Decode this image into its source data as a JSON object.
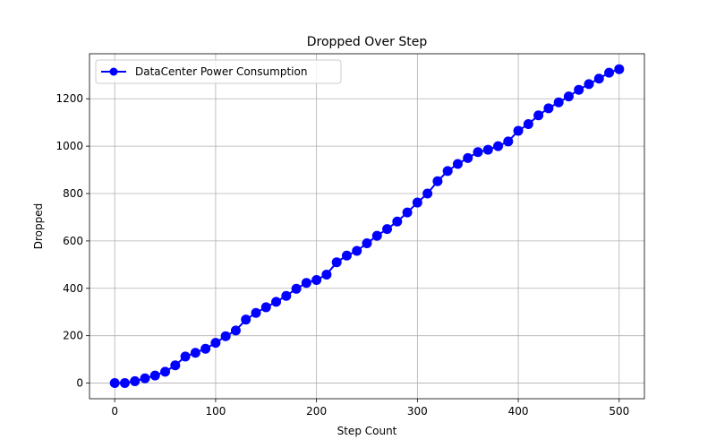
{
  "chart_data": {
    "type": "line",
    "title": "Dropped Over Step",
    "xlabel": "Step Count",
    "ylabel": "Dropped",
    "xlim": [
      -25,
      525
    ],
    "ylim": [
      -66,
      1390
    ],
    "xticks": [
      0,
      100,
      200,
      300,
      400,
      500
    ],
    "yticks": [
      0,
      200,
      400,
      600,
      800,
      1000,
      1200
    ],
    "grid": true,
    "legend_position": "top-left",
    "series": [
      {
        "name": "DataCenter Power Consumption",
        "color": "#0000ff",
        "marker": "circle",
        "x": [
          0,
          10,
          20,
          30,
          40,
          50,
          60,
          70,
          80,
          90,
          100,
          110,
          120,
          130,
          140,
          150,
          160,
          170,
          180,
          190,
          200,
          210,
          220,
          230,
          240,
          250,
          260,
          270,
          280,
          290,
          300,
          310,
          320,
          330,
          340,
          350,
          360,
          370,
          380,
          390,
          400,
          410,
          420,
          430,
          440,
          450,
          460,
          470,
          480,
          490,
          500
        ],
        "y": [
          0,
          0,
          8,
          20,
          32,
          48,
          75,
          112,
          128,
          145,
          170,
          198,
          222,
          268,
          296,
          320,
          343,
          368,
          398,
          423,
          435,
          458,
          510,
          538,
          558,
          590,
          622,
          650,
          682,
          720,
          762,
          800,
          852,
          895,
          925,
          950,
          975,
          985,
          1000,
          1020,
          1065,
          1093,
          1130,
          1160,
          1185,
          1210,
          1238,
          1262,
          1285,
          1310,
          1325
        ]
      }
    ]
  }
}
